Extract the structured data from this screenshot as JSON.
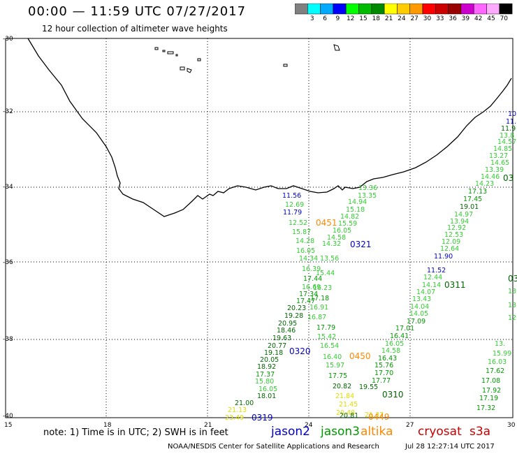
{
  "header": {
    "title": "00:00 — 11:59 UTC 07/27/2017",
    "subtitle": "12 hour collection of altimeter wave heights"
  },
  "colorbar": {
    "labels": [
      "3",
      "6",
      "9",
      "12",
      "15",
      "18",
      "21",
      "24",
      "27",
      "30",
      "33",
      "36",
      "39",
      "42",
      "45",
      "70",
      "(ft)"
    ],
    "colors": [
      "#808080",
      "#00ffff",
      "#00aaff",
      "#0000ff",
      "#00ff00",
      "#00bb00",
      "#008800",
      "#ffff00",
      "#ffcc00",
      "#ff9900",
      "#ff0000",
      "#cc0000",
      "#990000",
      "#cc00cc",
      "#ff66ff",
      "#ffaaff",
      "#000000"
    ]
  },
  "axes": {
    "lat_labels": [
      "-30",
      "-32",
      "-34",
      "-36",
      "-38",
      "-40"
    ],
    "lon_labels": [
      "15",
      "18",
      "21",
      "24",
      "27",
      "30"
    ]
  },
  "labels": [
    {
      "t": "10",
      "c": "#0000cc"
    },
    {
      "t": "11.",
      "c": "#0000cc"
    },
    {
      "t": "11.9",
      "c": "#006600"
    },
    {
      "t": "13.8",
      "c": "#33cc33"
    },
    {
      "t": "14.57",
      "c": "#33cc33"
    },
    {
      "t": "14.85",
      "c": "#33cc33"
    },
    {
      "t": "13.27",
      "c": "#33cc33"
    },
    {
      "t": "14.65",
      "c": "#33cc33"
    },
    {
      "t": "13.39",
      "c": "#33cc33"
    },
    {
      "t": "14.46",
      "c": "#33cc33"
    },
    {
      "t": "14.23",
      "c": "#33cc33"
    },
    {
      "t": "03",
      "c": "#006600"
    },
    {
      "t": "17.13",
      "c": "#009900"
    },
    {
      "t": "17.45",
      "c": "#009900"
    },
    {
      "t": "19.01",
      "c": "#006600"
    },
    {
      "t": "14.97",
      "c": "#33cc33"
    },
    {
      "t": "13.94",
      "c": "#33cc33"
    },
    {
      "t": "12.92",
      "c": "#33cc33"
    },
    {
      "t": "12.53",
      "c": "#33cc33"
    },
    {
      "t": "12.09",
      "c": "#33cc33"
    },
    {
      "t": "12.64",
      "c": "#33cc33"
    },
    {
      "t": "11.90",
      "c": "#0000cc"
    },
    {
      "t": "11.52",
      "c": "#0000cc"
    },
    {
      "t": "12.44",
      "c": "#33cc33"
    },
    {
      "t": "14.14",
      "c": "#33cc33"
    },
    {
      "t": "0311",
      "c": "#006600"
    },
    {
      "t": "14.07",
      "c": "#33cc33"
    },
    {
      "t": "13.43",
      "c": "#33cc33"
    },
    {
      "t": "14.04",
      "c": "#33cc33"
    },
    {
      "t": "14.05",
      "c": "#33cc33"
    },
    {
      "t": "17.09",
      "c": "#009900"
    },
    {
      "t": "17.01",
      "c": "#009900"
    },
    {
      "t": "16.41",
      "c": "#009900"
    },
    {
      "t": "16.05",
      "c": "#33cc33"
    },
    {
      "t": "14.58",
      "c": "#33cc33"
    },
    {
      "t": "16.43",
      "c": "#009900"
    },
    {
      "t": "15.76",
      "c": "#009900"
    },
    {
      "t": "17.70",
      "c": "#009900"
    },
    {
      "t": "17.77",
      "c": "#009900"
    },
    {
      "t": "19.55",
      "c": "#006600"
    },
    {
      "t": "0310",
      "c": "#006600"
    },
    {
      "t": "11.56",
      "c": "#0000cc"
    },
    {
      "t": "12.69",
      "c": "#33cc33"
    },
    {
      "t": "11.79",
      "c": "#0000cc"
    },
    {
      "t": "12.52",
      "c": "#33cc33"
    },
    {
      "t": "0451",
      "c": "#ff8800"
    },
    {
      "t": "15.87",
      "c": "#33cc33"
    },
    {
      "t": "14.28",
      "c": "#33cc33"
    },
    {
      "t": "16.05",
      "c": "#33cc33"
    },
    {
      "t": "14.34",
      "c": "#33cc33"
    },
    {
      "t": "16.39",
      "c": "#33cc33"
    },
    {
      "t": "17.44",
      "c": "#009900"
    },
    {
      "t": "16.69",
      "c": "#33cc33"
    },
    {
      "t": "17.34",
      "c": "#009900"
    },
    {
      "t": "17.47",
      "c": "#009900"
    },
    {
      "t": "20.23",
      "c": "#006600"
    },
    {
      "t": "19.28",
      "c": "#006600"
    },
    {
      "t": "20.95",
      "c": "#006600"
    },
    {
      "t": "18.46",
      "c": "#006600"
    },
    {
      "t": "19.63",
      "c": "#006600"
    },
    {
      "t": "20.77",
      "c": "#006600"
    },
    {
      "t": "19.18",
      "c": "#006600"
    },
    {
      "t": "0320",
      "c": "#0000cc"
    },
    {
      "t": "20.05",
      "c": "#006600"
    },
    {
      "t": "18.92",
      "c": "#006600"
    },
    {
      "t": "17.37",
      "c": "#009900"
    },
    {
      "t": "15.80",
      "c": "#33cc33"
    },
    {
      "t": "16.05",
      "c": "#33cc33"
    },
    {
      "t": "18.01",
      "c": "#006600"
    },
    {
      "t": "21.00",
      "c": "#006600"
    },
    {
      "t": "21.13",
      "c": "#dddd00"
    },
    {
      "t": "23.49",
      "c": "#dddd00"
    },
    {
      "t": "0319",
      "c": "#0000cc"
    },
    {
      "t": "13.36",
      "c": "#33cc33"
    },
    {
      "t": "13.35",
      "c": "#33cc33"
    },
    {
      "t": "14.94",
      "c": "#33cc33"
    },
    {
      "t": "15.18",
      "c": "#33cc33"
    },
    {
      "t": "14.82",
      "c": "#33cc33"
    },
    {
      "t": "15.59",
      "c": "#33cc33"
    },
    {
      "t": "16.05",
      "c": "#33cc33"
    },
    {
      "t": "14.58",
      "c": "#33cc33"
    },
    {
      "t": "14.32",
      "c": "#33cc33"
    },
    {
      "t": "0321",
      "c": "#0000cc"
    },
    {
      "t": "13.56",
      "c": "#33cc33"
    },
    {
      "t": "15.44",
      "c": "#33cc33"
    },
    {
      "t": "16.23",
      "c": "#33cc33"
    },
    {
      "t": "17.18",
      "c": "#009900"
    },
    {
      "t": "16.91",
      "c": "#33cc33"
    },
    {
      "t": "16.87",
      "c": "#33cc33"
    },
    {
      "t": "17.79",
      "c": "#009900"
    },
    {
      "t": "15.42",
      "c": "#33cc33"
    },
    {
      "t": "16.54",
      "c": "#33cc33"
    },
    {
      "t": "16.40",
      "c": "#33cc33"
    },
    {
      "t": "0450",
      "c": "#ff8800"
    },
    {
      "t": "15.97",
      "c": "#33cc33"
    },
    {
      "t": "17.75",
      "c": "#009900"
    },
    {
      "t": "20.82",
      "c": "#006600"
    },
    {
      "t": "21.84",
      "c": "#dddd00"
    },
    {
      "t": "21.45",
      "c": "#dddd00"
    },
    {
      "t": "20.48",
      "c": "#dddd00"
    },
    {
      "t": "20.81",
      "c": "#006600"
    },
    {
      "t": "21.37",
      "c": "#dddd00"
    },
    {
      "t": "0449",
      "c": "#ff8800"
    },
    {
      "t": "0309",
      "c": "#006600"
    },
    {
      "t": "13.",
      "c": "#33cc33"
    },
    {
      "t": "13.",
      "c": "#33cc33"
    },
    {
      "t": "12.",
      "c": "#33cc33"
    },
    {
      "t": "13.",
      "c": "#33cc33"
    },
    {
      "t": "15.99",
      "c": "#33cc33"
    },
    {
      "t": "16.03",
      "c": "#33cc33"
    },
    {
      "t": "17.62",
      "c": "#009900"
    },
    {
      "t": "17.08",
      "c": "#009900"
    },
    {
      "t": "17.92",
      "c": "#009900"
    },
    {
      "t": "17.19",
      "c": "#009900"
    },
    {
      "t": "17.32",
      "c": "#009900"
    },
    {
      "t": "15.26",
      "c": "#33cc33"
    }
  ],
  "footer": {
    "note": "note: 1) Time is in UTC; 2) SWH is in feet",
    "satellites": [
      {
        "name": "jason2",
        "color": "#0000cc"
      },
      {
        "name": "jason3",
        "color": "#009900"
      },
      {
        "name": "altika",
        "color": "#ff8800"
      },
      {
        "name": "cryosat",
        "color": "#cc0000"
      },
      {
        "name": "s3a",
        "color": "#cc0000"
      }
    ],
    "credit_left": "NOAA/NESDIS Center for Satellite Applications and Research",
    "credit_right": "Jul 28 12:27:14 UTC 2017"
  }
}
